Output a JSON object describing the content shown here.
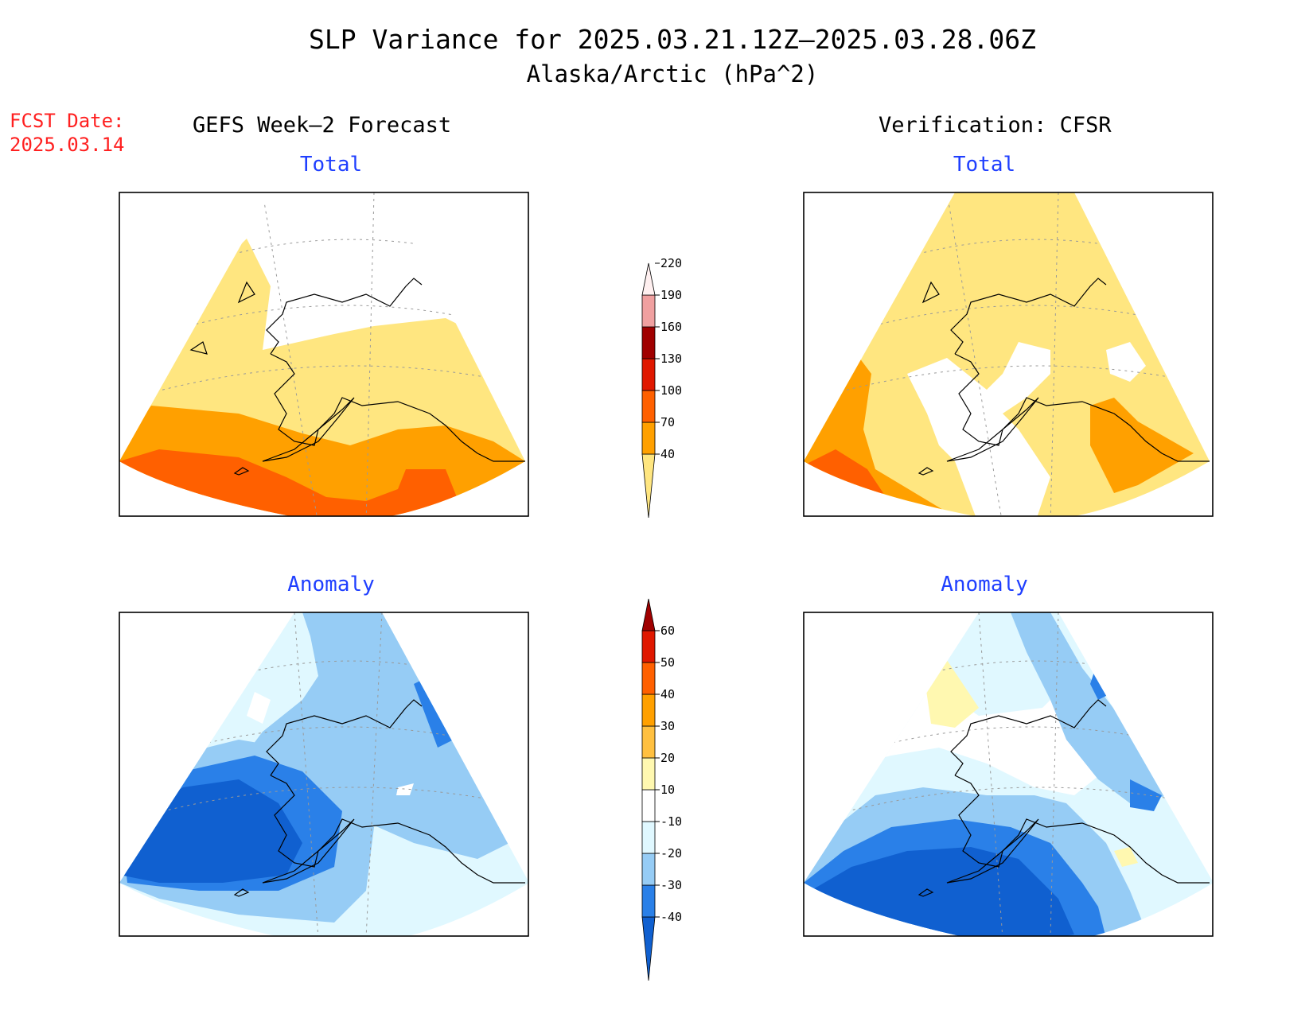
{
  "title": "SLP Variance for 2025.03.21.12Z–2025.03.28.06Z",
  "subtitle": "Alaska/Arctic (hPa^2)",
  "forecast_date": {
    "label": "FCST Date:",
    "value": "2025.03.14"
  },
  "columns": {
    "left": "GEFS Week–2 Forecast",
    "right": "Verification: CFSR"
  },
  "panels": {
    "total_left": "Total",
    "total_right": "Total",
    "anomaly_left": "Anomaly",
    "anomaly_right": "Anomaly"
  },
  "total_colorbar": {
    "levels": [
      "40",
      "70",
      "100",
      "130",
      "160",
      "190",
      "220"
    ],
    "colors": [
      "#ffe680",
      "#ffa000",
      "#ff6000",
      "#e01800",
      "#a00000",
      "#f0a0a0",
      "#fff0f0"
    ]
  },
  "anomaly_colorbar": {
    "levels": [
      "-40",
      "-30",
      "-20",
      "-10",
      "10",
      "20",
      "30",
      "40",
      "50",
      "60"
    ],
    "colors": [
      "#1060d0",
      "#2a80e8",
      "#96ccf5",
      "#e0f8ff",
      "#ffffff",
      "#fff8b0",
      "#ffc040",
      "#ffa000",
      "#ff6000",
      "#e01800",
      "#a00000"
    ]
  }
}
